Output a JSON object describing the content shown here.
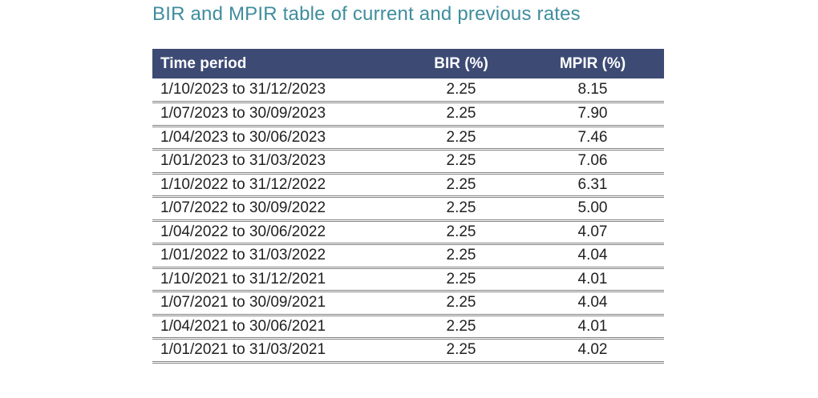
{
  "title": "BIR and MPIR table of current and previous rates",
  "colors": {
    "title_text": "#3e8d9d",
    "header_background": "#3d4a74",
    "header_text": "#ffffff",
    "body_text": "#212121",
    "row_separator": "#848484"
  },
  "table": {
    "columns": [
      "Time period",
      "BIR (%)",
      "MPIR (%)"
    ],
    "rows": [
      {
        "time_period": "1/10/2023 to 31/12/2023",
        "bir": "2.25",
        "mpir": "8.15"
      },
      {
        "time_period": "1/07/2023 to 30/09/2023",
        "bir": "2.25",
        "mpir": "7.90"
      },
      {
        "time_period": "1/04/2023 to 30/06/2023",
        "bir": "2.25",
        "mpir": "7.46"
      },
      {
        "time_period": "1/01/2023 to 31/03/2023",
        "bir": "2.25",
        "mpir": "7.06"
      },
      {
        "time_period": "1/10/2022 to 31/12/2022",
        "bir": "2.25",
        "mpir": "6.31"
      },
      {
        "time_period": "1/07/2022 to 30/09/2022",
        "bir": "2.25",
        "mpir": "5.00"
      },
      {
        "time_period": "1/04/2022 to 30/06/2022",
        "bir": "2.25",
        "mpir": "4.07"
      },
      {
        "time_period": "1/01/2022 to 31/03/2022",
        "bir": "2.25",
        "mpir": "4.04"
      },
      {
        "time_period": "1/10/2021 to 31/12/2021",
        "bir": "2.25",
        "mpir": "4.01"
      },
      {
        "time_period": "1/07/2021 to 30/09/2021",
        "bir": "2.25",
        "mpir": "4.04"
      },
      {
        "time_period": "1/04/2021 to 30/06/2021",
        "bir": "2.25",
        "mpir": "4.01"
      },
      {
        "time_period": "1/01/2021 to 31/03/2021",
        "bir": "2.25",
        "mpir": "4.02"
      }
    ]
  }
}
